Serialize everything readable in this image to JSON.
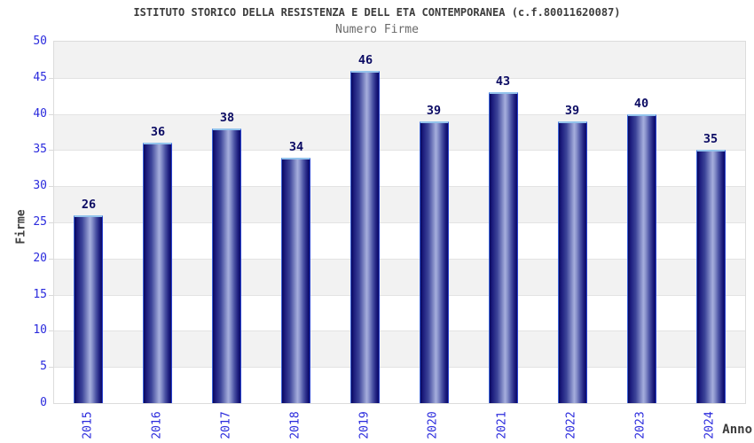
{
  "header": {
    "title": "ISTITUTO STORICO DELLA RESISTENZA E DELL ETA CONTEMPORANEA (c.f.80011620087)",
    "subtitle": "Numero Firme"
  },
  "chart_data": {
    "type": "bar",
    "title": "Numero Firme",
    "categories": [
      "2015",
      "2016",
      "2017",
      "2018",
      "2019",
      "2020",
      "2021",
      "2022",
      "2023",
      "2024"
    ],
    "values": [
      26,
      36,
      38,
      34,
      46,
      39,
      43,
      39,
      40,
      35
    ],
    "xlabel": "Anno",
    "ylabel": "Firme",
    "ylim": [
      0,
      50
    ],
    "yticks": [
      0,
      5,
      10,
      15,
      20,
      25,
      30,
      35,
      40,
      45,
      50
    ],
    "grid": "horizontal-bands-alternating",
    "legend": "none",
    "bar_value_labels": true
  },
  "colors": {
    "axis_tick_label": "#2b2bdd",
    "bar_value_label": "#0b0b63",
    "title_text": "#3c3c3c",
    "subtitle_text": "#6a6a6a",
    "axis_title_text": "#3f3f3f",
    "band_gray": "#f2f2f2",
    "band_white": "#ffffff",
    "plot_border": "#dcdcdc",
    "bar_dark": "#0a0a68",
    "bar_highlight": "#a6aedd",
    "bar_cap": "#93c3ec"
  }
}
